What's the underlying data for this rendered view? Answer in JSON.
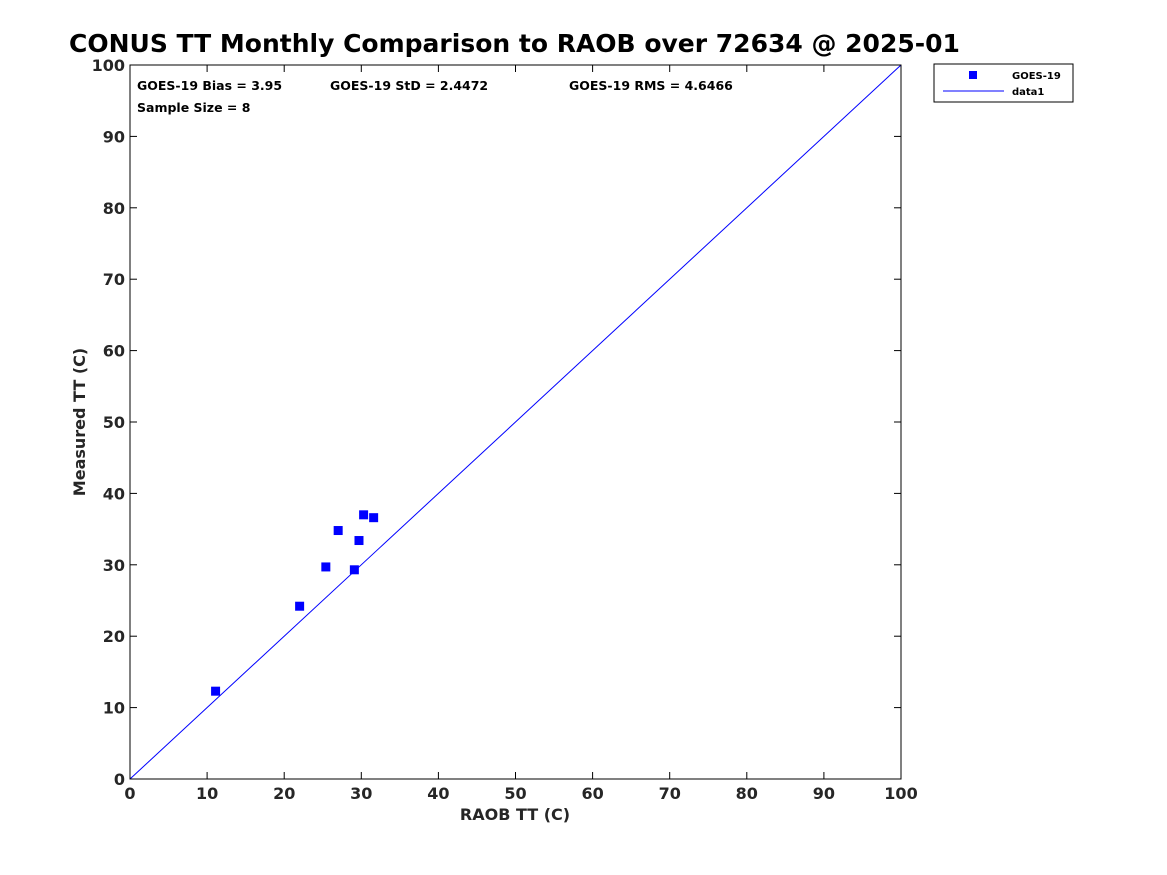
{
  "chart_data": {
    "type": "scatter",
    "title": "CONUS TT Monthly Comparison to RAOB over 72634 @ 2025-01",
    "xlabel": "RAOB TT (C)",
    "ylabel": "Measured TT (C)",
    "xlim": [
      0,
      100
    ],
    "ylim": [
      0,
      100
    ],
    "xticks": [
      0,
      10,
      20,
      30,
      40,
      50,
      60,
      70,
      80,
      90,
      100
    ],
    "yticks": [
      0,
      10,
      20,
      30,
      40,
      50,
      60,
      70,
      80,
      90,
      100
    ],
    "series": [
      {
        "name": "GOES-19",
        "marker": "square",
        "color": "#0000ff",
        "points": [
          {
            "x": 11.1,
            "y": 12.3
          },
          {
            "x": 22.0,
            "y": 24.2
          },
          {
            "x": 25.4,
            "y": 29.7
          },
          {
            "x": 27.0,
            "y": 34.8
          },
          {
            "x": 29.1,
            "y": 29.3
          },
          {
            "x": 29.7,
            "y": 33.4
          },
          {
            "x": 30.3,
            "y": 37.0
          },
          {
            "x": 31.6,
            "y": 36.6
          }
        ]
      },
      {
        "name": "data1",
        "type": "line",
        "color": "#0000ff",
        "x": [
          0,
          100
        ],
        "y": [
          0,
          100
        ]
      }
    ],
    "annotations": {
      "bias": "GOES-19 Bias = 3.95",
      "std": "GOES-19 StD = 2.4472",
      "rms": "GOES-19 RMS = 4.6466",
      "sample": "Sample Size = 8"
    },
    "legend_position": "outside-top-right"
  }
}
